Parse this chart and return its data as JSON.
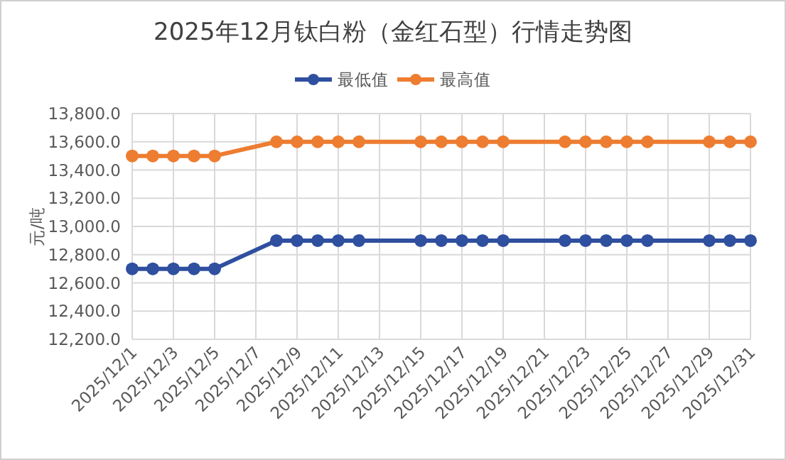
{
  "chart_data": {
    "type": "line",
    "title": "2025年12月钛白粉（金红石型）行情走势图",
    "ylabel": "元/吨",
    "legend": "top",
    "grid": true,
    "marker": "circle",
    "line_style": "solid",
    "x": [
      "2025-12-01",
      "2025-12-02",
      "2025-12-03",
      "2025-12-04",
      "2025-12-05",
      "2025-12-08",
      "2025-12-09",
      "2025-12-10",
      "2025-12-11",
      "2025-12-12",
      "2025-12-15",
      "2025-12-16",
      "2025-12-17",
      "2025-12-18",
      "2025-12-19",
      "2025-12-22",
      "2025-12-23",
      "2025-12-24",
      "2025-12-25",
      "2025-12-26",
      "2025-12-29",
      "2025-12-30",
      "2025-12-31"
    ],
    "series": [
      {
        "name": "最低值",
        "color": "#2f4f9f",
        "values": [
          12700,
          12700,
          12700,
          12700,
          12700,
          12900,
          12900,
          12900,
          12900,
          12900,
          12900,
          12900,
          12900,
          12900,
          12900,
          12900,
          12900,
          12900,
          12900,
          12900,
          12900,
          12900,
          12900
        ]
      },
      {
        "name": "最高值",
        "color": "#ed7d31",
        "values": [
          13500,
          13500,
          13500,
          13500,
          13500,
          13600,
          13600,
          13600,
          13600,
          13600,
          13600,
          13600,
          13600,
          13600,
          13600,
          13600,
          13600,
          13600,
          13600,
          13600,
          13600,
          13600,
          13600
        ]
      }
    ],
    "xlim": [
      "2025-12-01",
      "2025-12-31"
    ],
    "xticks": [
      {
        "value": "2025-12-01",
        "label": "2025/12/1"
      },
      {
        "value": "2025-12-03",
        "label": "2025/12/3"
      },
      {
        "value": "2025-12-05",
        "label": "2025/12/5"
      },
      {
        "value": "2025-12-07",
        "label": "2025/12/7"
      },
      {
        "value": "2025-12-09",
        "label": "2025/12/9"
      },
      {
        "value": "2025-12-11",
        "label": "2025/12/11"
      },
      {
        "value": "2025-12-13",
        "label": "2025/12/13"
      },
      {
        "value": "2025-12-15",
        "label": "2025/12/15"
      },
      {
        "value": "2025-12-17",
        "label": "2025/12/17"
      },
      {
        "value": "2025-12-19",
        "label": "2025/12/19"
      },
      {
        "value": "2025-12-21",
        "label": "2025/12/21"
      },
      {
        "value": "2025-12-23",
        "label": "2025/12/23"
      },
      {
        "value": "2025-12-25",
        "label": "2025/12/25"
      },
      {
        "value": "2025-12-27",
        "label": "2025/12/27"
      },
      {
        "value": "2025-12-29",
        "label": "2025/12/29"
      },
      {
        "value": "2025-12-31",
        "label": "2025/12/31"
      }
    ],
    "ylim": [
      12200,
      13800
    ],
    "yticks": [
      {
        "value": 12200,
        "label": "12,200.0"
      },
      {
        "value": 12400,
        "label": "12,400.0"
      },
      {
        "value": 12600,
        "label": "12,600.0"
      },
      {
        "value": 12800,
        "label": "12,800.0"
      },
      {
        "value": 13000,
        "label": "13,000.0"
      },
      {
        "value": 13200,
        "label": "13,200.0"
      },
      {
        "value": 13400,
        "label": "13,400.0"
      },
      {
        "value": 13600,
        "label": "13,600.0"
      },
      {
        "value": 13800,
        "label": "13,800.0"
      }
    ]
  }
}
